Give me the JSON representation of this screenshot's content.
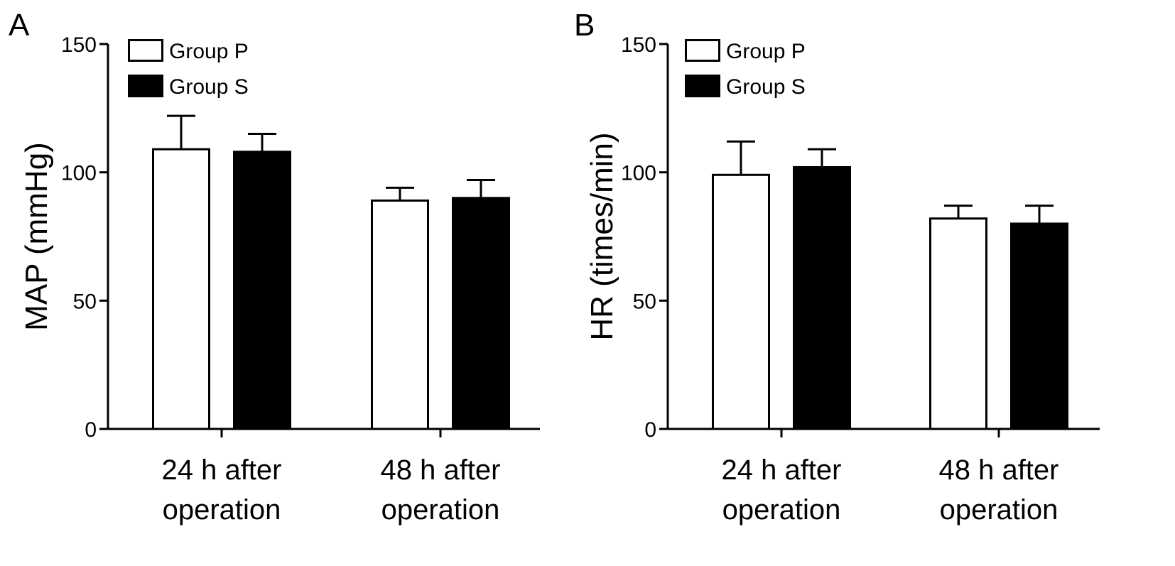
{
  "chart_data": [
    {
      "type": "bar",
      "panel_label": "A",
      "categories": [
        [
          "24 h after",
          "operation"
        ],
        [
          "48 h after",
          "operation"
        ]
      ],
      "series": [
        {
          "name": "Group P",
          "values": [
            109,
            89
          ],
          "errors": [
            13,
            5
          ],
          "fill": "#ffffff"
        },
        {
          "name": "Group S",
          "values": [
            108,
            90
          ],
          "errors": [
            7,
            7
          ],
          "fill": "#000000"
        }
      ],
      "ylabel": "MAP (mmHg)",
      "ylim": [
        0,
        150
      ],
      "yticks": [
        0,
        50,
        100,
        150
      ],
      "legend": "top-left",
      "grid": false
    },
    {
      "type": "bar",
      "panel_label": "B",
      "categories": [
        [
          "24 h after",
          "operation"
        ],
        [
          "48 h after",
          "operation"
        ]
      ],
      "series": [
        {
          "name": "Group P",
          "values": [
            99,
            82
          ],
          "errors": [
            13,
            5
          ],
          "fill": "#ffffff"
        },
        {
          "name": "Group S",
          "values": [
            102,
            80
          ],
          "errors": [
            7,
            7
          ],
          "fill": "#000000"
        }
      ],
      "ylabel": "HR (times/min)",
      "ylim": [
        0,
        150
      ],
      "yticks": [
        0,
        50,
        100,
        150
      ],
      "legend": "top-left",
      "grid": false
    }
  ]
}
